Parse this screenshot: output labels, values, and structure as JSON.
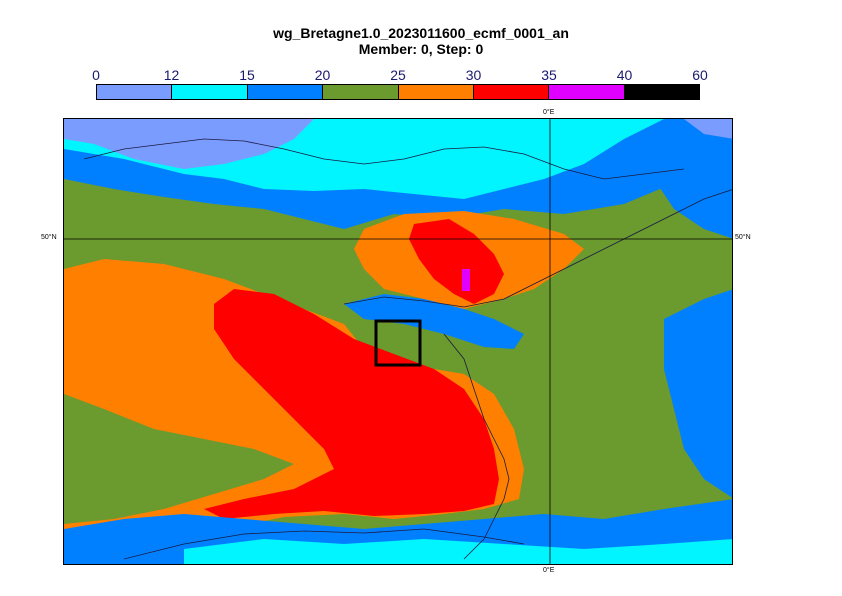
{
  "title": {
    "line1": "wg_Bretagne1.0_2023011600_ecmf_0001_an",
    "line2": "Member: 0, Step: 0"
  },
  "legend": {
    "ticks": [
      "0",
      "12",
      "15",
      "20",
      "25",
      "30",
      "35",
      "40",
      "60"
    ],
    "colors": [
      "#7a9cff",
      "#00f5ff",
      "#0080ff",
      "#6b9a2e",
      "#ff8000",
      "#ff0000",
      "#e000ff",
      "#000000"
    ]
  },
  "map": {
    "lat_label": "50°N",
    "lon_label": "0°E",
    "region_colors": {
      "light_blue": "#7a9cff",
      "cyan": "#00f5ff",
      "blue": "#0080ff",
      "green": "#6b9a2e",
      "orange": "#ff8000",
      "red": "#ff0000",
      "magenta": "#e000ff",
      "box": "#000000"
    }
  }
}
